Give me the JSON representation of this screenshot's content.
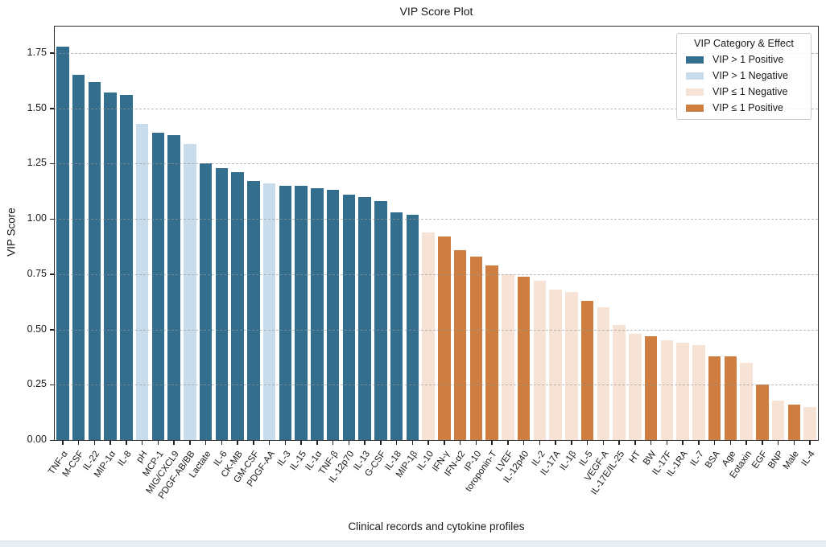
{
  "chart_data": {
    "type": "bar",
    "title": "VIP Score Plot",
    "xlabel": "Clinical records and cytokine profiles",
    "ylabel": "VIP Score",
    "ylim": [
      0,
      1.87
    ],
    "grid": "horizontal-dashed",
    "yticks": [
      0.0,
      0.25,
      0.5,
      0.75,
      1.0,
      1.25,
      1.5,
      1.75
    ],
    "ytick_labels": [
      "0.00",
      "0.25",
      "0.50",
      "0.75",
      "1.00",
      "1.25",
      "1.50",
      "1.75"
    ],
    "colors": {
      "gt1_pos": "#336e8e",
      "gt1_neg": "#c9dcec",
      "le1_neg": "#f7e2d6",
      "le1_pos": "#cf7e41"
    },
    "legend": {
      "title": "VIP Category & Effect",
      "position": "upper right",
      "entries": [
        {
          "label": "VIP > 1 Positive",
          "key": "gt1_pos"
        },
        {
          "label": "VIP > 1 Negative",
          "key": "gt1_neg"
        },
        {
          "label": "VIP ≤ 1 Negative",
          "key": "le1_neg"
        },
        {
          "label": "VIP ≤ 1 Positive",
          "key": "le1_pos"
        }
      ]
    },
    "bars": [
      {
        "label": "TNF-α",
        "value": 1.78,
        "category": "gt1_pos"
      },
      {
        "label": "M-CSF",
        "value": 1.65,
        "category": "gt1_pos"
      },
      {
        "label": "IL-22",
        "value": 1.62,
        "category": "gt1_pos"
      },
      {
        "label": "MIP-1α",
        "value": 1.57,
        "category": "gt1_pos"
      },
      {
        "label": "IL-8",
        "value": 1.56,
        "category": "gt1_pos"
      },
      {
        "label": "pH",
        "value": 1.43,
        "category": "gt1_neg"
      },
      {
        "label": "MCP-1",
        "value": 1.39,
        "category": "gt1_pos"
      },
      {
        "label": "MIG/CXCL9",
        "value": 1.38,
        "category": "gt1_pos"
      },
      {
        "label": "PDGF-AB/BB",
        "value": 1.34,
        "category": "gt1_neg"
      },
      {
        "label": "Lactate",
        "value": 1.25,
        "category": "gt1_pos"
      },
      {
        "label": "IL-6",
        "value": 1.23,
        "category": "gt1_pos"
      },
      {
        "label": "CK-MB",
        "value": 1.21,
        "category": "gt1_pos"
      },
      {
        "label": "GM-CSF",
        "value": 1.17,
        "category": "gt1_pos"
      },
      {
        "label": "PDGF-AA",
        "value": 1.16,
        "category": "gt1_neg"
      },
      {
        "label": "IL-3",
        "value": 1.15,
        "category": "gt1_pos"
      },
      {
        "label": "IL-15",
        "value": 1.15,
        "category": "gt1_pos"
      },
      {
        "label": "IL-1α",
        "value": 1.14,
        "category": "gt1_pos"
      },
      {
        "label": "TNF-β",
        "value": 1.13,
        "category": "gt1_pos"
      },
      {
        "label": "IL-12p70",
        "value": 1.11,
        "category": "gt1_pos"
      },
      {
        "label": "IL-13",
        "value": 1.1,
        "category": "gt1_pos"
      },
      {
        "label": "G-CSF",
        "value": 1.08,
        "category": "gt1_pos"
      },
      {
        "label": "IL-18",
        "value": 1.03,
        "category": "gt1_pos"
      },
      {
        "label": "MIP-1β",
        "value": 1.02,
        "category": "gt1_pos"
      },
      {
        "label": "IL-10",
        "value": 0.94,
        "category": "le1_neg"
      },
      {
        "label": "IFN-γ",
        "value": 0.92,
        "category": "le1_pos"
      },
      {
        "label": "IFN-α2",
        "value": 0.86,
        "category": "le1_pos"
      },
      {
        "label": "IP-10",
        "value": 0.83,
        "category": "le1_pos"
      },
      {
        "label": "toroponin-T",
        "value": 0.79,
        "category": "le1_pos"
      },
      {
        "label": "LVEF",
        "value": 0.75,
        "category": "le1_neg"
      },
      {
        "label": "IL-12p40",
        "value": 0.74,
        "category": "le1_pos"
      },
      {
        "label": "IL-2",
        "value": 0.72,
        "category": "le1_neg"
      },
      {
        "label": "IL-17A",
        "value": 0.68,
        "category": "le1_neg"
      },
      {
        "label": "IL-1β",
        "value": 0.67,
        "category": "le1_neg"
      },
      {
        "label": "IL-5",
        "value": 0.63,
        "category": "le1_pos"
      },
      {
        "label": "VEGF-A",
        "value": 0.6,
        "category": "le1_neg"
      },
      {
        "label": "IL-17E/IL-25",
        "value": 0.52,
        "category": "le1_neg"
      },
      {
        "label": "HT",
        "value": 0.48,
        "category": "le1_neg"
      },
      {
        "label": "BW",
        "value": 0.47,
        "category": "le1_pos"
      },
      {
        "label": "IL-17F",
        "value": 0.45,
        "category": "le1_neg"
      },
      {
        "label": "IL-1RA",
        "value": 0.44,
        "category": "le1_neg"
      },
      {
        "label": "IL-7",
        "value": 0.43,
        "category": "le1_neg"
      },
      {
        "label": "BSA",
        "value": 0.38,
        "category": "le1_pos"
      },
      {
        "label": "Age",
        "value": 0.38,
        "category": "le1_pos"
      },
      {
        "label": "Eotaxin",
        "value": 0.35,
        "category": "le1_neg"
      },
      {
        "label": "EGF",
        "value": 0.25,
        "category": "le1_pos"
      },
      {
        "label": "BNP",
        "value": 0.18,
        "category": "le1_neg"
      },
      {
        "label": "Male",
        "value": 0.16,
        "category": "le1_pos"
      },
      {
        "label": "IL-4",
        "value": 0.15,
        "category": "le1_neg"
      }
    ]
  }
}
